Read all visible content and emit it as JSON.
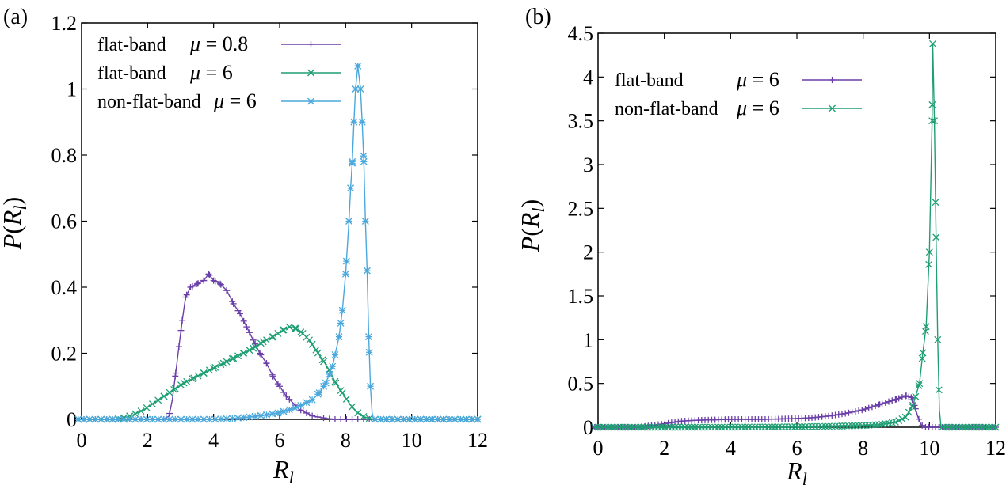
{
  "chart_data": [
    {
      "panel": "(a)",
      "type": "line",
      "xlabel_main": "R",
      "xlabel_sub": "l",
      "ylabel": [
        "P",
        "(",
        "R",
        "l",
        ")"
      ],
      "xlim": [
        0,
        12
      ],
      "ylim": [
        0,
        1.2
      ],
      "xticks": [
        "0",
        "2",
        "4",
        "6",
        "8",
        "10",
        "12"
      ],
      "xtick_values": [
        0,
        2,
        4,
        6,
        8,
        10,
        12
      ],
      "yticks": [
        "0",
        "0.2",
        "0.4",
        "0.6",
        "0.8",
        "1",
        "1.2"
      ],
      "ytick_values": [
        0,
        0.2,
        0.4,
        0.6,
        0.8,
        1.0,
        1.2
      ],
      "legend_position": "top-left",
      "series": [
        {
          "name": "flat-band",
          "mu_label": "μ = 0.8",
          "color": "#6a3fa8",
          "marker": "plus",
          "points": [
            [
              -0.1,
              0
            ],
            [
              2.5,
              0
            ],
            [
              2.65,
              0.01
            ],
            [
              2.75,
              0.06
            ],
            [
              2.85,
              0.14
            ],
            [
              2.95,
              0.22
            ],
            [
              3.05,
              0.3
            ],
            [
              3.15,
              0.37
            ],
            [
              3.3,
              0.4
            ],
            [
              3.5,
              0.41
            ],
            [
              3.7,
              0.42
            ],
            [
              3.85,
              0.44
            ],
            [
              4.0,
              0.42
            ],
            [
              4.2,
              0.41
            ],
            [
              4.4,
              0.39
            ],
            [
              4.6,
              0.35
            ],
            [
              4.8,
              0.32
            ],
            [
              5.0,
              0.28
            ],
            [
              5.2,
              0.24
            ],
            [
              5.4,
              0.2
            ],
            [
              5.6,
              0.17
            ],
            [
              5.8,
              0.13
            ],
            [
              6.0,
              0.1
            ],
            [
              6.2,
              0.07
            ],
            [
              6.4,
              0.05
            ],
            [
              6.6,
              0.03
            ],
            [
              6.8,
              0.02
            ],
            [
              7.0,
              0.01
            ],
            [
              7.3,
              0.005
            ],
            [
              7.6,
              0
            ],
            [
              12,
              0
            ]
          ]
        },
        {
          "name": "flat-band",
          "mu_label": "μ = 6",
          "color": "#1e9e73",
          "marker": "x",
          "points": [
            [
              -0.1,
              0
            ],
            [
              1.0,
              0
            ],
            [
              1.3,
              0.005
            ],
            [
              1.6,
              0.015
            ],
            [
              1.9,
              0.03
            ],
            [
              2.2,
              0.05
            ],
            [
              2.5,
              0.07
            ],
            [
              2.8,
              0.09
            ],
            [
              3.1,
              0.11
            ],
            [
              3.4,
              0.125
            ],
            [
              3.7,
              0.14
            ],
            [
              4.0,
              0.155
            ],
            [
              4.3,
              0.17
            ],
            [
              4.6,
              0.185
            ],
            [
              4.9,
              0.2
            ],
            [
              5.2,
              0.215
            ],
            [
              5.5,
              0.235
            ],
            [
              5.8,
              0.25
            ],
            [
              6.1,
              0.27
            ],
            [
              6.3,
              0.28
            ],
            [
              6.5,
              0.275
            ],
            [
              6.7,
              0.26
            ],
            [
              6.9,
              0.24
            ],
            [
              7.1,
              0.21
            ],
            [
              7.3,
              0.18
            ],
            [
              7.5,
              0.15
            ],
            [
              7.7,
              0.11
            ],
            [
              7.9,
              0.08
            ],
            [
              8.1,
              0.05
            ],
            [
              8.3,
              0.025
            ],
            [
              8.5,
              0.01
            ],
            [
              8.7,
              0.003
            ],
            [
              8.9,
              0
            ],
            [
              12,
              0
            ]
          ]
        },
        {
          "name": "non-flat-band",
          "mu_label": "μ = 6",
          "color": "#4aa8dc",
          "marker": "star",
          "points": [
            [
              -0.1,
              0
            ],
            [
              4.0,
              0
            ],
            [
              4.5,
              0.002
            ],
            [
              5.0,
              0.006
            ],
            [
              5.5,
              0.012
            ],
            [
              6.0,
              0.02
            ],
            [
              6.5,
              0.035
            ],
            [
              7.0,
              0.06
            ],
            [
              7.2,
              0.08
            ],
            [
              7.4,
              0.11
            ],
            [
              7.6,
              0.16
            ],
            [
              7.8,
              0.25
            ],
            [
              7.9,
              0.33
            ],
            [
              8.0,
              0.44
            ],
            [
              8.1,
              0.6
            ],
            [
              8.15,
              0.7
            ],
            [
              8.2,
              0.78
            ],
            [
              8.25,
              0.9
            ],
            [
              8.3,
              1.0
            ],
            [
              8.37,
              1.07
            ],
            [
              8.45,
              1.0
            ],
            [
              8.5,
              0.9
            ],
            [
              8.55,
              0.78
            ],
            [
              8.6,
              0.6
            ],
            [
              8.65,
              0.45
            ],
            [
              8.7,
              0.25
            ],
            [
              8.75,
              0.1
            ],
            [
              8.8,
              0.02
            ],
            [
              8.85,
              0
            ],
            [
              12,
              0
            ]
          ]
        }
      ]
    },
    {
      "panel": "(b)",
      "type": "line",
      "xlabel_main": "R",
      "xlabel_sub": "l",
      "ylabel": [
        "P",
        "(",
        "R",
        "l",
        ")"
      ],
      "xlim": [
        0,
        12
      ],
      "ylim": [
        0,
        4.5
      ],
      "xticks": [
        "0",
        "2",
        "4",
        "6",
        "8",
        "10",
        "12"
      ],
      "xtick_values": [
        0,
        2,
        4,
        6,
        8,
        10,
        12
      ],
      "yticks": [
        "0",
        "0.5",
        "1",
        "1.5",
        "2",
        "2.5",
        "3",
        "3.5",
        "4",
        "4.5"
      ],
      "ytick_values": [
        0,
        0.5,
        1.0,
        1.5,
        2.0,
        2.5,
        3.0,
        3.5,
        4.0,
        4.5
      ],
      "legend_position": "top-left",
      "series": [
        {
          "name": "flat-band",
          "mu_label": "μ = 6",
          "color": "#6a3fa8",
          "marker": "plus",
          "points": [
            [
              -0.1,
              0
            ],
            [
              1.2,
              0
            ],
            [
              1.6,
              0.02
            ],
            [
              2.0,
              0.04
            ],
            [
              2.5,
              0.07
            ],
            [
              3.0,
              0.08
            ],
            [
              3.5,
              0.085
            ],
            [
              4.0,
              0.09
            ],
            [
              4.5,
              0.09
            ],
            [
              5.0,
              0.09
            ],
            [
              5.5,
              0.095
            ],
            [
              6.0,
              0.1
            ],
            [
              6.5,
              0.11
            ],
            [
              7.0,
              0.13
            ],
            [
              7.5,
              0.16
            ],
            [
              8.0,
              0.2
            ],
            [
              8.5,
              0.26
            ],
            [
              9.0,
              0.32
            ],
            [
              9.3,
              0.36
            ],
            [
              9.45,
              0.34
            ],
            [
              9.55,
              0.25
            ],
            [
              9.65,
              0.12
            ],
            [
              9.75,
              0.03
            ],
            [
              9.85,
              0
            ],
            [
              12,
              0
            ]
          ]
        },
        {
          "name": "non-flat-band",
          "mu_label": "μ = 6",
          "color": "#1e9e73",
          "marker": "x",
          "points": [
            [
              -0.1,
              0
            ],
            [
              3.0,
              0
            ],
            [
              5.0,
              0.002
            ],
            [
              6.0,
              0.005
            ],
            [
              7.0,
              0.01
            ],
            [
              8.0,
              0.02
            ],
            [
              8.5,
              0.03
            ],
            [
              9.0,
              0.06
            ],
            [
              9.3,
              0.12
            ],
            [
              9.5,
              0.25
            ],
            [
              9.7,
              0.5
            ],
            [
              9.8,
              0.85
            ],
            [
              9.9,
              1.15
            ],
            [
              10.0,
              2.0
            ],
            [
              10.08,
              3.5
            ],
            [
              10.1,
              4.38
            ],
            [
              10.15,
              3.5
            ],
            [
              10.2,
              2.17
            ],
            [
              10.25,
              1.0
            ],
            [
              10.3,
              0.2
            ],
            [
              10.35,
              0
            ],
            [
              12,
              0
            ]
          ]
        }
      ]
    }
  ]
}
